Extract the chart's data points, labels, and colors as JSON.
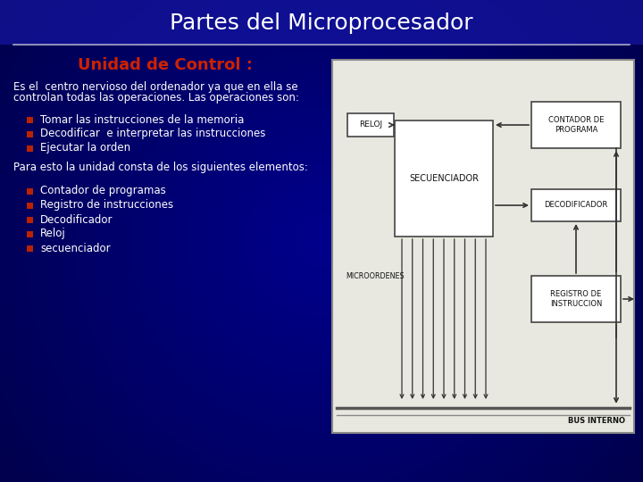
{
  "title": "Partes del Microprocesador",
  "title_color": "#FFFFFF",
  "title_fontsize": 18,
  "subtitle": "Unidad de Control :",
  "subtitle_color": "#CC2200",
  "subtitle_fontsize": 13,
  "bg_top_color": "#0000AA",
  "bg_bottom_color": "#000055",
  "line_color": "#AAAACC",
  "text_color": "#FFFFFF",
  "text_fontsize": 8.5,
  "bullet_color": "#BB2200",
  "body_text1_line1": "Es el  centro nervioso del ordenador ya que en ella se",
  "body_text1_line2": "controlan todas las operaciones. Las operaciones son:",
  "bullets1": [
    "Tomar las instrucciones de la memoria",
    "Decodificar  e interpretar las instrucciones",
    "Ejecutar la orden"
  ],
  "intro2": "Para esto la unidad consta de los siguientes elementos:",
  "bullets2": [
    "Contador de programas",
    "Registro de instrucciones",
    "Decodificador",
    "Reloj",
    "secuenciador"
  ],
  "diag_bg": "#E8E8E0",
  "diag_border": "#888888",
  "box_fill": "#FFFFFF",
  "box_edge": "#444444",
  "arrow_color": "#333333",
  "diag_text_color": "#111111"
}
